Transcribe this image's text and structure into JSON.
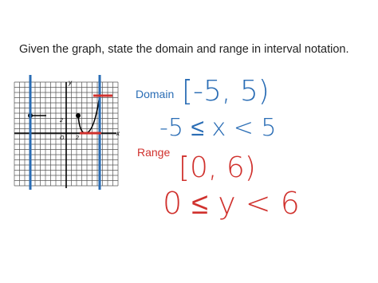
{
  "prompt": "Given the graph, state the domain and range in interval notation.",
  "graph": {
    "y_label": "y",
    "x_label": "x",
    "y_tick": "2",
    "x_tick": "2",
    "origin": "O"
  },
  "domain": {
    "label": "Domain",
    "interval": "[-5, 5)",
    "inequality": "-5 ≤ x < 5"
  },
  "range": {
    "label": "Range",
    "interval": "[0, 6)",
    "inequality": "0 ≤ y < 6"
  }
}
